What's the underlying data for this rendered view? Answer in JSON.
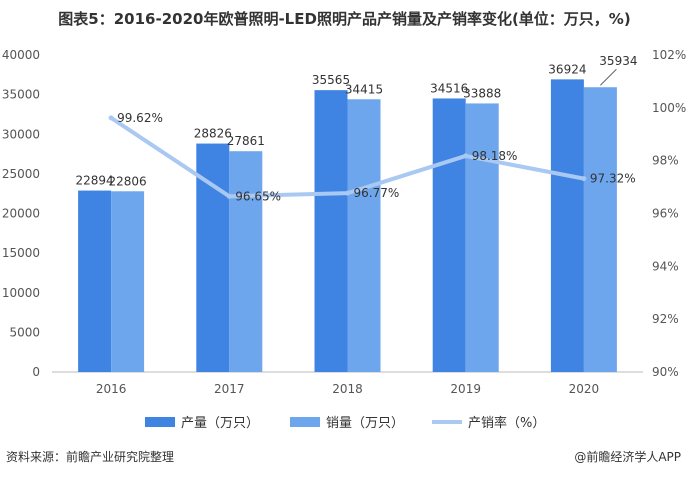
{
  "title": "图表5：2016-2020年欧普照明-LED照明产品产销量及产销率变化(单位：万只，%)",
  "source": "资料来源：前瞻产业研究院整理",
  "credit": "@前瞻经济学人APP",
  "colors": {
    "production": "#3f84e3",
    "sales": "#6ea6ee",
    "rate": "#a9c8f2"
  },
  "chart_data": {
    "type": "bar",
    "categories": [
      "2016",
      "2017",
      "2018",
      "2019",
      "2020"
    ],
    "series": [
      {
        "name": "产量（万只）",
        "type": "bar",
        "axis": "left",
        "values": [
          22894,
          28826,
          35565,
          34516,
          36924
        ]
      },
      {
        "name": "销量（万只）",
        "type": "bar",
        "axis": "left",
        "values": [
          22806,
          27861,
          34415,
          33888,
          35934
        ]
      },
      {
        "name": "产销率（%）",
        "type": "line",
        "axis": "right",
        "values": [
          99.62,
          96.65,
          96.77,
          98.18,
          97.32
        ]
      }
    ],
    "rate_labels": [
      "99.62%",
      "96.65%",
      "96.77%",
      "98.18%",
      "97.32%"
    ],
    "y_left": {
      "min": 0,
      "max": 40000,
      "ticks": [
        "0",
        "5000",
        "10000",
        "15000",
        "20000",
        "25000",
        "30000",
        "35000",
        "40000"
      ]
    },
    "y_right": {
      "min": 90,
      "max": 102,
      "ticks": [
        "90%",
        "92%",
        "94%",
        "96%",
        "98%",
        "100%",
        "102%"
      ]
    },
    "legend": [
      "产量（万只）",
      "销量（万只）",
      "产销率（%）"
    ],
    "legend_position": "bottom",
    "grid": false
  }
}
